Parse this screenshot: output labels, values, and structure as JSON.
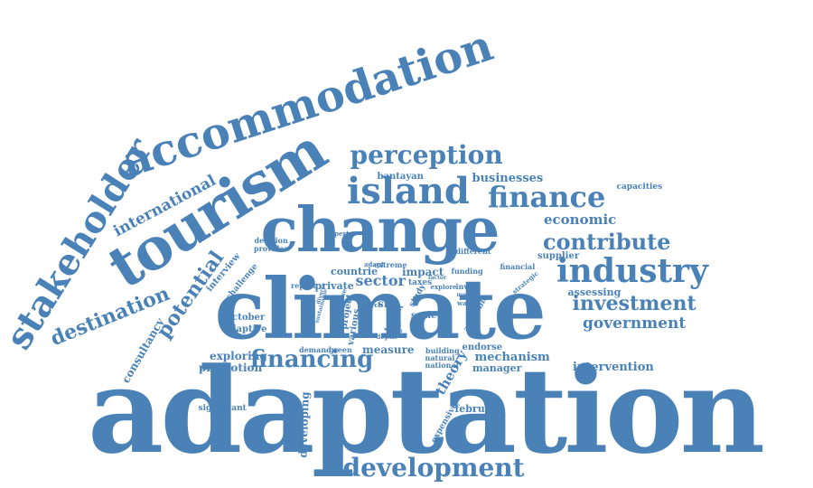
{
  "word_cloud": {
    "word_color": "#4a82b8",
    "background_color": "#ffffff",
    "words": [
      "adaptation",
      "climate",
      "change",
      "tourism",
      "accommodation",
      "stakeholder",
      "island",
      "finance",
      "perception",
      "industry",
      "development",
      "contribute",
      "investment",
      "government",
      "financing",
      "destination",
      "potential",
      "international",
      "economic",
      "businesses",
      "bantayan",
      "capacities",
      "sector",
      "impact",
      "private",
      "countrie",
      "mechanism",
      "promotion",
      "exploring",
      "intervention",
      "measure",
      "manager",
      "theory",
      "developing",
      "consultancy",
      "interview",
      "challenge",
      "october",
      "adaptive",
      "significant",
      "assessing",
      "supplier",
      "financial",
      "strategic",
      "decision",
      "provider",
      "expert",
      "different",
      "funding",
      "report",
      "scale",
      "study",
      "sid",
      "available",
      "endorse",
      "february",
      "expensive",
      "building",
      "natural",
      "national",
      "demand",
      "green",
      "various",
      "project",
      "energy",
      "mobilise",
      "taxes",
      "explore",
      "invest",
      "extreme",
      "adapt",
      "water",
      "source",
      "depth",
      "factor",
      "lead",
      "price",
      "most",
      "tourist",
      "diverse",
      "sustainable"
    ]
  }
}
